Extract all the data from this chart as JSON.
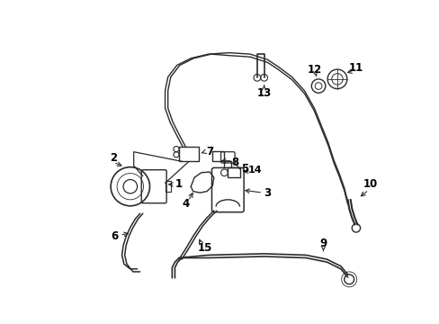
{
  "bg_color": "#ffffff",
  "line_color": "#2a2a2a",
  "label_color": "#000000",
  "figsize": [
    4.89,
    3.6
  ],
  "dpi": 100,
  "xlim": [
    0,
    489
  ],
  "ylim": [
    0,
    360
  ]
}
